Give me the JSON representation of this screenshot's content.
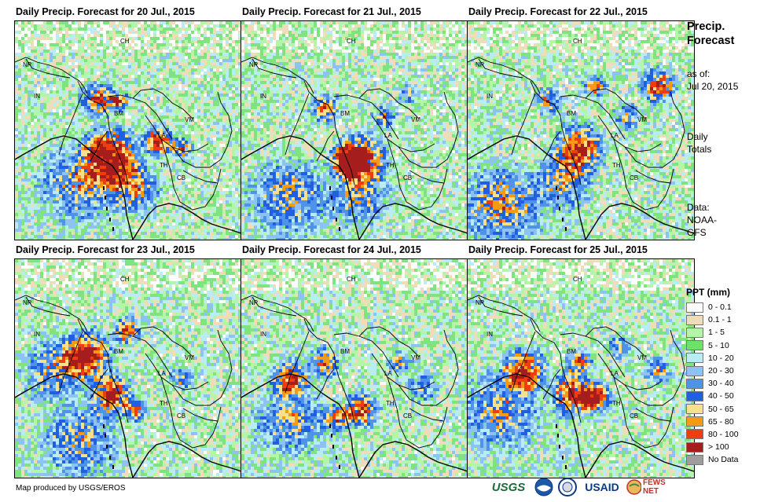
{
  "panels": [
    {
      "title": "Daily Precip. Forecast for 20 Jul., 2015"
    },
    {
      "title": "Daily Precip. Forecast for 21 Jul., 2015"
    },
    {
      "title": "Daily Precip. Forecast for 22 Jul., 2015"
    },
    {
      "title": "Daily Precip. Forecast for 23 Jul., 2015"
    },
    {
      "title": "Daily Precip. Forecast for 24 Jul., 2015"
    },
    {
      "title": "Daily Precip. Forecast for 25 Jul., 2015"
    }
  ],
  "country_labels": [
    "CH",
    "NP",
    "IN",
    "BM",
    "LA",
    "VM",
    "TH",
    "CB"
  ],
  "side": {
    "title_line1": "Precip.",
    "title_line2": "Forecast",
    "asof_line1": "as of:",
    "asof_line2": "Jul 20, 2015",
    "totals_line1": "Daily",
    "totals_line2": "Totals",
    "data_line1": "Data:",
    "data_line2": "NOAA-",
    "data_line3": "GFS"
  },
  "legend": {
    "title": "PPT (mm)",
    "items": [
      {
        "label": "0 - 0.1",
        "color": "#ffffff"
      },
      {
        "label": "0.1 - 1",
        "color": "#efdcb8"
      },
      {
        "label": "1 - 5",
        "color": "#b4f5a8"
      },
      {
        "label": "5 - 10",
        "color": "#6fe06a"
      },
      {
        "label": "10 - 20",
        "color": "#b9ecf4"
      },
      {
        "label": "20 - 30",
        "color": "#8cc3f3"
      },
      {
        "label": "30 - 40",
        "color": "#4f93e9"
      },
      {
        "label": "40 - 50",
        "color": "#1f5fe0"
      },
      {
        "label": "50 - 65",
        "color": "#f9e08a"
      },
      {
        "label": "65 - 80",
        "color": "#f59a12"
      },
      {
        "label": "80 - 100",
        "color": "#ee3d0e"
      },
      {
        "label": "> 100",
        "color": "#a51d1d"
      },
      {
        "label": "No Data",
        "color": "#9d9d9d"
      }
    ]
  },
  "credit": "Map produced by USGS/EROS",
  "logos": {
    "usgs": "USGS",
    "usaid": "USAID",
    "fewsnet": "FEWS NET"
  },
  "colors": {
    "border": "#000000",
    "land_green": "#7fe37f",
    "usgs_green": "#1b6d3a",
    "usaid_blue": "#0b3a82",
    "fews_red": "#c0322a"
  }
}
